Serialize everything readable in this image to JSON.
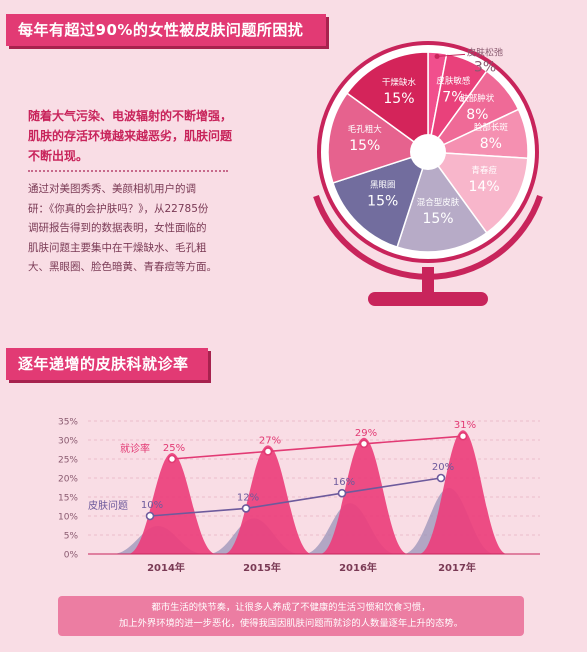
{
  "section1": {
    "title": "每年有超过90%的女性被皮肤问题所困扰",
    "intro": "随着大气污染、电波辐射的不断增强，肌肤的存活环境越来越恶劣，肌肤问题不断出现。",
    "survey_lines": [
      "通过对美图秀秀、美颜相机用户的调",
      "研：《你真的会护肤吗？》，从22785份",
      "调研报告得到的数据表明，女性面临的",
      "肌肤问题主要集中在干燥缺水、毛孔粗",
      "大、黑眼圈、脸色暗黄、青春痘等方面。"
    ]
  },
  "pie_chart": {
    "type": "pie",
    "slices": [
      {
        "label": "皮肤松弛",
        "value": 3,
        "display": "3%",
        "color": "#f14f8d"
      },
      {
        "label": "皮肤敏感",
        "value": 7,
        "display": "7%",
        "color": "#e9417b"
      },
      {
        "label": "肤部肿状",
        "value": 8,
        "display": "8%",
        "color": "#ef6a97"
      },
      {
        "label": "脸部长斑",
        "value": 8,
        "display": "8%",
        "color": "#f590b1"
      },
      {
        "label": "青春痘",
        "value": 14,
        "display": "14%",
        "color": "#f8b6cb"
      },
      {
        "label": "混合型皮肤",
        "value": 15,
        "display": "15%",
        "color": "#b7abc7"
      },
      {
        "label": "黑眼圈",
        "value": 15,
        "display": "15%",
        "color": "#726d9e"
      },
      {
        "label": "毛孔粗大",
        "value": 15,
        "display": "15%",
        "color": "#e6628e"
      },
      {
        "label": "干燥缺水",
        "value": 15,
        "display": "15%",
        "color": "#d4245a"
      }
    ]
  },
  "section2": {
    "title": "逐年递增的皮肤科就诊率"
  },
  "chart_data": {
    "type": "line",
    "categories": [
      "2014年",
      "2015年",
      "2016年",
      "2017年"
    ],
    "ylim": [
      0,
      35
    ],
    "yticks": [
      "0%",
      "5%",
      "10%",
      "15%",
      "20%",
      "25%",
      "30%",
      "35%"
    ],
    "series": [
      {
        "name": "就诊率",
        "values": [
          25,
          27,
          29,
          31
        ],
        "labels": [
          "25%",
          "27%",
          "29%",
          "31%"
        ],
        "color": "#e23a74"
      },
      {
        "name": "皮肤问题",
        "values": [
          10,
          12,
          16,
          20
        ],
        "labels": [
          "10%",
          "12%",
          "16%",
          "20%"
        ],
        "color": "#6d5a9c"
      }
    ]
  },
  "footer_note": {
    "lines": [
      "都市生活的快节奏，让很多人养成了不健康的生活习惯和饮食习惯，",
      "加上外界环境的进一步恶化，使得我国因肌肤问题而就诊的人数量逐年上升的态势。"
    ]
  },
  "colors": {
    "accent": "#e23a74",
    "background": "#f9dde5"
  }
}
